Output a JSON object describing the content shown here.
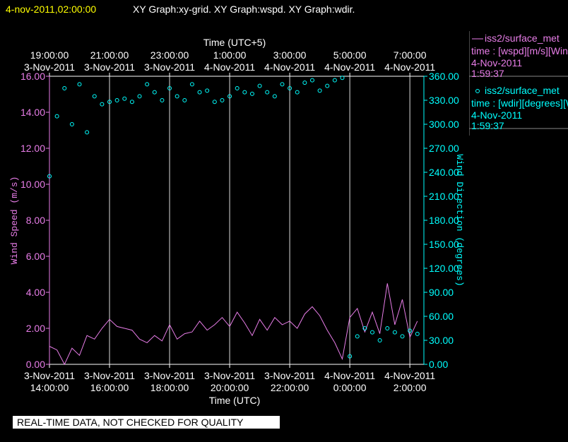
{
  "chart_data": {
    "type": "line",
    "title_date": "4-nov-2011,02:00:00",
    "title": "XY Graph:xy-grid.  XY Graph:wspd.  XY Graph:wdir.",
    "x_label": "Time (UTC)",
    "x2_label": "Time (UTC+5)",
    "y_label": "Wind Speed (m/s)",
    "y2_label": "Wind Direction (degrees)",
    "note": "REAL-TIME DATA, NOT CHECKED FOR QUALITY",
    "grid": true,
    "xlim": [
      "2011-11-03 14:00:00",
      "2011-11-04 02:28:00"
    ],
    "xticks": [
      {
        "value": "2011-11-03 14:00:00",
        "label": [
          "3-Nov-2011",
          "14:00:00"
        ]
      },
      {
        "value": "2011-11-03 16:00:00",
        "label": [
          "3-Nov-2011",
          "16:00:00"
        ]
      },
      {
        "value": "2011-11-03 18:00:00",
        "label": [
          "3-Nov-2011",
          "18:00:00"
        ]
      },
      {
        "value": "2011-11-03 20:00:00",
        "label": [
          "3-Nov-2011",
          "20:00:00"
        ]
      },
      {
        "value": "2011-11-03 22:00:00",
        "label": [
          "3-Nov-2011",
          "22:00:00"
        ]
      },
      {
        "value": "2011-11-04 00:00:00",
        "label": [
          "4-Nov-2011",
          "0:00:00"
        ]
      },
      {
        "value": "2011-11-04 02:00:00",
        "label": [
          "4-Nov-2011",
          "2:00:00"
        ]
      }
    ],
    "x2ticks": [
      {
        "value": "2011-11-03 14:00:00",
        "label": [
          "19:00:00",
          "3-Nov-2011"
        ]
      },
      {
        "value": "2011-11-03 16:00:00",
        "label": [
          "21:00:00",
          "3-Nov-2011"
        ]
      },
      {
        "value": "2011-11-03 18:00:00",
        "label": [
          "23:00:00",
          "3-Nov-2011"
        ]
      },
      {
        "value": "2011-11-03 20:00:00",
        "label": [
          "1:00:00",
          "4-Nov-2011"
        ]
      },
      {
        "value": "2011-11-03 22:00:00",
        "label": [
          "3:00:00",
          "4-Nov-2011"
        ]
      },
      {
        "value": "2011-11-04 00:00:00",
        "label": [
          "5:00:00",
          "4-Nov-2011"
        ]
      },
      {
        "value": "2011-11-04 02:00:00",
        "label": [
          "7:00:00",
          "4-Nov-2011"
        ]
      }
    ],
    "ylim": [
      0,
      16
    ],
    "yticks": [
      {
        "value": 0,
        "label": "0.00"
      },
      {
        "value": 2,
        "label": "2.00"
      },
      {
        "value": 4,
        "label": "4.00"
      },
      {
        "value": 6,
        "label": "6.00"
      },
      {
        "value": 8,
        "label": "8.00"
      },
      {
        "value": 10,
        "label": "10.00"
      },
      {
        "value": 12,
        "label": "12.00"
      },
      {
        "value": 14,
        "label": "14.00"
      },
      {
        "value": 16,
        "label": "16.00"
      }
    ],
    "y2lim": [
      0,
      360
    ],
    "y2ticks": [
      {
        "value": 0,
        "label": "0.00"
      },
      {
        "value": 30,
        "label": "30.00"
      },
      {
        "value": 60,
        "label": "60.00"
      },
      {
        "value": 90,
        "label": "90.00"
      },
      {
        "value": 120,
        "label": "120.00"
      },
      {
        "value": 150,
        "label": "150.00"
      },
      {
        "value": 180,
        "label": "180.00"
      },
      {
        "value": 210,
        "label": "210.00"
      },
      {
        "value": 240,
        "label": "240.00"
      },
      {
        "value": 270,
        "label": "270.00"
      },
      {
        "value": 300,
        "label": "300.00"
      },
      {
        "value": 330,
        "label": "330.00"
      },
      {
        "value": 360,
        "label": "360.00"
      }
    ],
    "x": [
      "2011-11-03 14:00:00",
      "2011-11-03 14:15:00",
      "2011-11-03 14:30:00",
      "2011-11-03 14:45:00",
      "2011-11-03 15:00:00",
      "2011-11-03 15:15:00",
      "2011-11-03 15:30:00",
      "2011-11-03 15:45:00",
      "2011-11-03 16:00:00",
      "2011-11-03 16:15:00",
      "2011-11-03 16:30:00",
      "2011-11-03 16:45:00",
      "2011-11-03 17:00:00",
      "2011-11-03 17:15:00",
      "2011-11-03 17:30:00",
      "2011-11-03 17:45:00",
      "2011-11-03 18:00:00",
      "2011-11-03 18:15:00",
      "2011-11-03 18:30:00",
      "2011-11-03 18:45:00",
      "2011-11-03 19:00:00",
      "2011-11-03 19:15:00",
      "2011-11-03 19:30:00",
      "2011-11-03 19:45:00",
      "2011-11-03 20:00:00",
      "2011-11-03 20:15:00",
      "2011-11-03 20:30:00",
      "2011-11-03 20:45:00",
      "2011-11-03 21:00:00",
      "2011-11-03 21:15:00",
      "2011-11-03 21:30:00",
      "2011-11-03 21:45:00",
      "2011-11-03 22:00:00",
      "2011-11-03 22:15:00",
      "2011-11-03 22:30:00",
      "2011-11-03 22:45:00",
      "2011-11-03 23:00:00",
      "2011-11-03 23:15:00",
      "2011-11-03 23:30:00",
      "2011-11-03 23:45:00",
      "2011-11-04 00:00:00",
      "2011-11-04 00:15:00",
      "2011-11-04 00:30:00",
      "2011-11-04 00:45:00",
      "2011-11-04 01:00:00",
      "2011-11-04 01:15:00",
      "2011-11-04 01:30:00",
      "2011-11-04 01:45:00",
      "2011-11-04 02:00:00",
      "2011-11-04 02:15:00"
    ],
    "series": [
      {
        "name": "iss2/surface_met",
        "type": "line",
        "color": "#e87de8",
        "legend_time": "time : [wspd][m/s][Wind",
        "legend_date": "4-Nov-2011",
        "legend_clock": "1:59:37",
        "values": [
          1.0,
          0.8,
          0.0,
          0.9,
          0.5,
          1.6,
          1.4,
          2.0,
          2.5,
          2.1,
          2.0,
          1.9,
          1.4,
          1.2,
          1.6,
          1.3,
          2.2,
          1.4,
          1.7,
          1.8,
          2.4,
          1.9,
          2.2,
          2.6,
          2.1,
          2.9,
          2.3,
          1.6,
          2.5,
          1.9,
          2.6,
          2.2,
          2.4,
          2.0,
          2.8,
          3.2,
          2.7,
          1.9,
          1.2,
          0.3,
          2.6,
          3.1,
          1.8,
          2.9,
          1.7,
          4.5,
          2.2,
          3.6,
          1.5,
          2.4
        ]
      },
      {
        "name": "iss2/surface_met",
        "type": "scatter",
        "axis": "y2",
        "color": "#00ffff",
        "legend_time": "time : [wdir][degrees][W",
        "legend_date": "4-Nov-2011",
        "legend_clock": "1:59:37",
        "values": [
          235,
          310,
          345,
          300,
          350,
          290,
          335,
          325,
          328,
          330,
          332,
          328,
          335,
          350,
          340,
          330,
          345,
          335,
          330,
          350,
          340,
          342,
          328,
          330,
          335,
          345,
          340,
          338,
          348,
          340,
          335,
          350,
          345,
          340,
          352,
          355,
          342,
          348,
          355,
          358,
          10,
          35,
          45,
          40,
          30,
          45,
          40,
          35,
          42,
          38
        ]
      }
    ]
  }
}
